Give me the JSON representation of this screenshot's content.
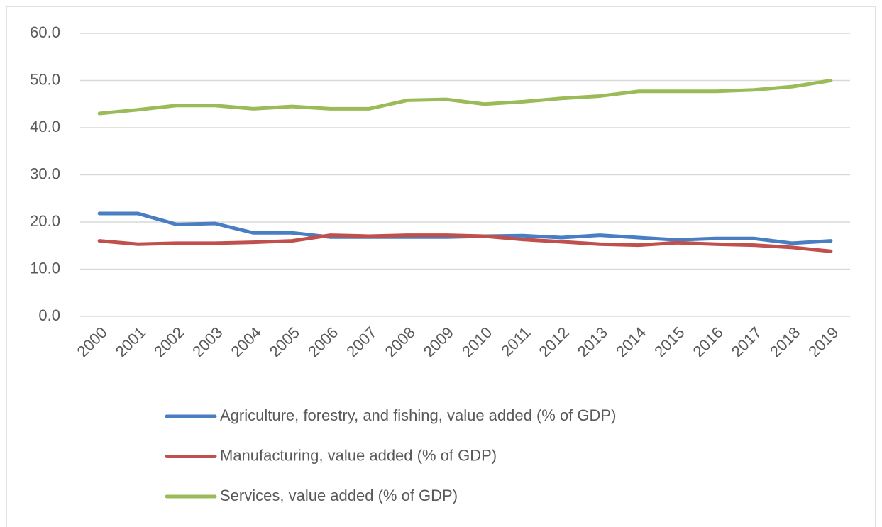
{
  "chart_data": {
    "type": "line",
    "categories": [
      "2000",
      "2001",
      "2002",
      "2003",
      "2004",
      "2005",
      "2006",
      "2007",
      "2008",
      "2009",
      "2010",
      "2011",
      "2012",
      "2013",
      "2014",
      "2015",
      "2016",
      "2017",
      "2018",
      "2019"
    ],
    "series": [
      {
        "name": "Agriculture, forestry, and fishing, value added (% of GDP)",
        "color": "#4a7ec2",
        "values": [
          21.8,
          21.8,
          19.5,
          19.7,
          17.7,
          17.7,
          16.8,
          16.8,
          16.8,
          16.8,
          17.0,
          17.1,
          16.7,
          17.2,
          16.7,
          16.2,
          16.5,
          16.5,
          15.5,
          16.0
        ]
      },
      {
        "name": "Manufacturing, value added (% of GDP)",
        "color": "#c0504d",
        "values": [
          16.0,
          15.3,
          15.5,
          15.5,
          15.7,
          16.0,
          17.2,
          17.0,
          17.2,
          17.2,
          17.0,
          16.3,
          15.8,
          15.3,
          15.1,
          15.6,
          15.3,
          15.1,
          14.6,
          13.8
        ]
      },
      {
        "name": "Services, value added (% of GDP)",
        "color": "#9bbb59",
        "values": [
          43.0,
          43.8,
          44.7,
          44.7,
          44.0,
          44.5,
          44.0,
          44.0,
          45.8,
          46.0,
          45.0,
          45.5,
          46.2,
          46.7,
          47.7,
          47.7,
          47.7,
          48.0,
          48.7,
          50.0
        ]
      }
    ],
    "ylim": [
      0,
      60
    ],
    "yticks": [
      {
        "value": 0,
        "label": "0.0"
      },
      {
        "value": 10,
        "label": "10.0"
      },
      {
        "value": 20,
        "label": "20.0"
      },
      {
        "value": 30,
        "label": "30.0"
      },
      {
        "value": 40,
        "label": "40.0"
      },
      {
        "value": 50,
        "label": "50.0"
      },
      {
        "value": 60,
        "label": "60.0"
      }
    ],
    "grid": true,
    "legend": "bottom"
  }
}
